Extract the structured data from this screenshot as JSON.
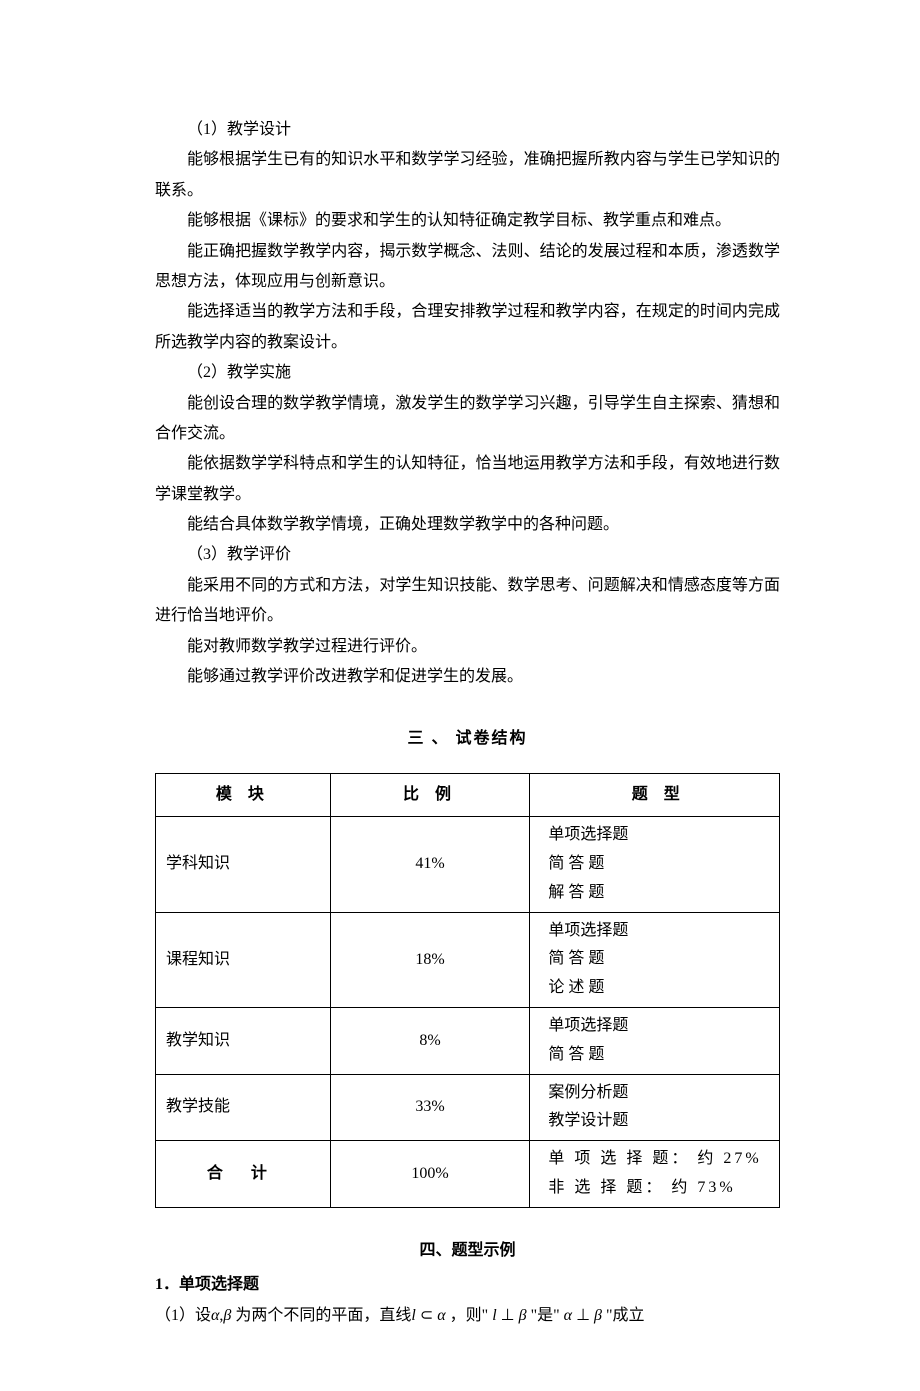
{
  "body": {
    "paragraphs": [
      {
        "text": "（1）教学设计",
        "indent": true
      },
      {
        "text": "能够根据学生已有的知识水平和数学学习经验，准确把握所教内容与学生已学知识的联系。",
        "indent": true
      },
      {
        "text": "能够根据《课标》的要求和学生的认知特征确定教学目标、教学重点和难点。",
        "indent": true
      },
      {
        "text": "能正确把握数学教学内容，揭示数学概念、法则、结论的发展过程和本质，渗透数学思想方法，体现应用与创新意识。",
        "indent": true
      },
      {
        "text": "能选择适当的教学方法和手段，合理安排教学过程和教学内容，在规定的时间内完成所选教学内容的教案设计。",
        "indent": true
      },
      {
        "text": "（2）教学实施",
        "indent": true
      },
      {
        "text": "能创设合理的数学教学情境，激发学生的数学学习兴趣，引导学生自主探索、猜想和合作交流。",
        "indent": true
      },
      {
        "text": "能依据数学学科特点和学生的认知特征，恰当地运用教学方法和手段，有效地进行数学课堂教学。",
        "indent": true
      },
      {
        "text": "能结合具体数学教学情境，正确处理数学教学中的各种问题。",
        "indent": true
      },
      {
        "text": "（3）教学评价",
        "indent": true
      },
      {
        "text": "能采用不同的方式和方法，对学生知识技能、数学思考、问题解决和情感态度等方面进行恰当地评价。",
        "indent": true
      },
      {
        "text": "能对教师数学教学过程进行评价。",
        "indent": true
      },
      {
        "text": "能够通过教学评价改进教学和促进学生的发展。",
        "indent": true
      }
    ]
  },
  "section3": {
    "heading": "三 、 试卷结构",
    "table": {
      "header": {
        "module": "模 块",
        "ratio": "比 例",
        "type": "题 型"
      },
      "rows": [
        {
          "module": "学科知识",
          "ratio": "41%",
          "types": [
            "单项选择题",
            "简 答 题",
            "解 答 题"
          ],
          "spaced": [
            false,
            true,
            true
          ]
        },
        {
          "module": "课程知识",
          "ratio": "18%",
          "types": [
            "单项选择题",
            "简 答 题",
            "论 述 题"
          ],
          "spaced": [
            false,
            true,
            true
          ]
        },
        {
          "module": "教学知识",
          "ratio": "8%",
          "types": [
            "单项选择题",
            "简 答 题"
          ],
          "spaced": [
            false,
            true
          ]
        },
        {
          "module": "教学技能",
          "ratio": "33%",
          "types": [
            "案例分析题",
            "教学设计题"
          ],
          "spaced": [
            false,
            false
          ]
        }
      ],
      "total": {
        "module": "合 计",
        "ratio": "100%",
        "lines": [
          "单 项 选 择 题： 约 27%",
          "非 选 择 题： 约 73%"
        ]
      }
    }
  },
  "section4": {
    "heading": "四、题型示例",
    "item1_label": "1．单项选择题",
    "q1_prefix": "（1）设",
    "q1_alpha": "α",
    "q1_comma": ",",
    "q1_beta": "β",
    "q1_mid1": " 为两个不同的平面，直线",
    "q1_l": "l",
    "q1_subset": " ⊂ ",
    "q1_alpha2": "α",
    "q1_mid2": " ，则\" ",
    "q1_l2": "l",
    "q1_perp": " ⊥ ",
    "q1_beta2": "β",
    "q1_mid3": " \"是\" ",
    "q1_alpha3": "α",
    "q1_perp2": " ⊥ ",
    "q1_beta3": "β",
    "q1_end": " \"成立"
  }
}
